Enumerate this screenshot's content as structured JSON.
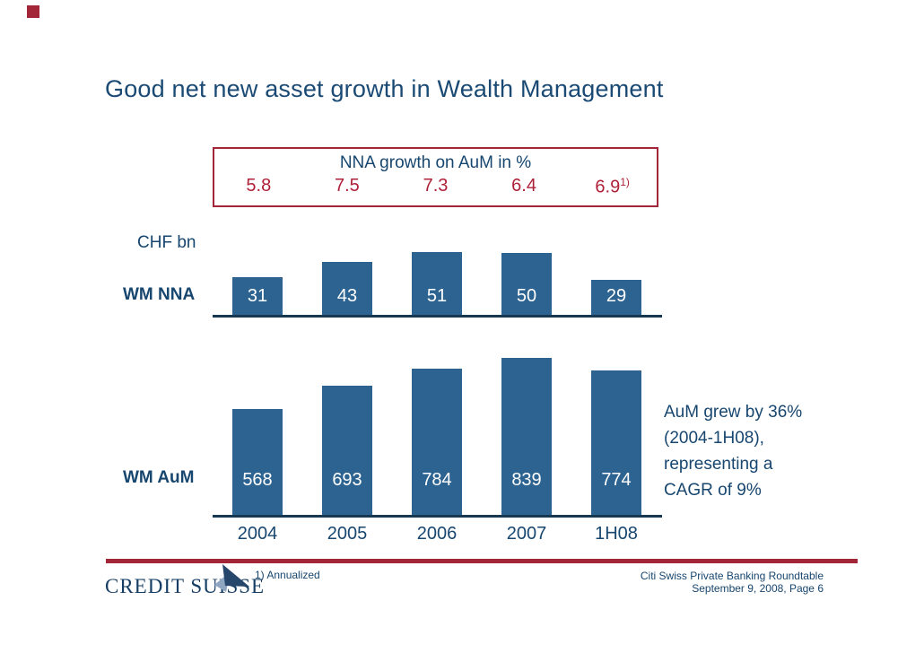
{
  "slide": {
    "title": "Good net new asset growth in Wealth Management",
    "colors": {
      "accent_red": "#A32638",
      "value_red": "#AF2138",
      "navy_text": "#17466F",
      "bar_blue": "#2D6390",
      "axis_navy": "#163850",
      "logo_navy": "#163E64"
    }
  },
  "nna_box": {
    "title": "NNA growth on AuM in %",
    "values": [
      "5.8",
      "7.5",
      "7.3",
      "6.4",
      "6.9"
    ],
    "last_value_superscript": "1)"
  },
  "labels": {
    "unit": "CHF bn",
    "wm_nna": "WM NNA",
    "wm_aum": "WM AuM"
  },
  "chart_data": {
    "type": "bar",
    "categories": [
      "2004",
      "2005",
      "2006",
      "2007",
      "1H08"
    ],
    "unit": "CHF bn",
    "series": [
      {
        "name": "WM NNA",
        "values": [
          31,
          43,
          51,
          50,
          29
        ]
      },
      {
        "name": "WM AuM",
        "values": [
          568,
          693,
          784,
          839,
          774
        ]
      }
    ],
    "nna_growth_on_aum_pct": [
      5.8,
      7.5,
      7.3,
      6.4,
      6.9
    ],
    "nna_growth_note": "1H08 value annualized",
    "grid": false,
    "bar_value_labels": "inside-bottom, white",
    "title": "NNA growth on AuM in %"
  },
  "side_note": {
    "lines": [
      "AuM grew by 36%",
      "(2004-1H08),",
      "representing a",
      "CAGR of 9%"
    ]
  },
  "footnote": "1) Annualized",
  "footer": {
    "line1": "Citi Swiss Private Banking Roundtable",
    "line2": "September 9, 2008, Page 6"
  },
  "logo": {
    "text": "CREDIT SUISSE"
  }
}
